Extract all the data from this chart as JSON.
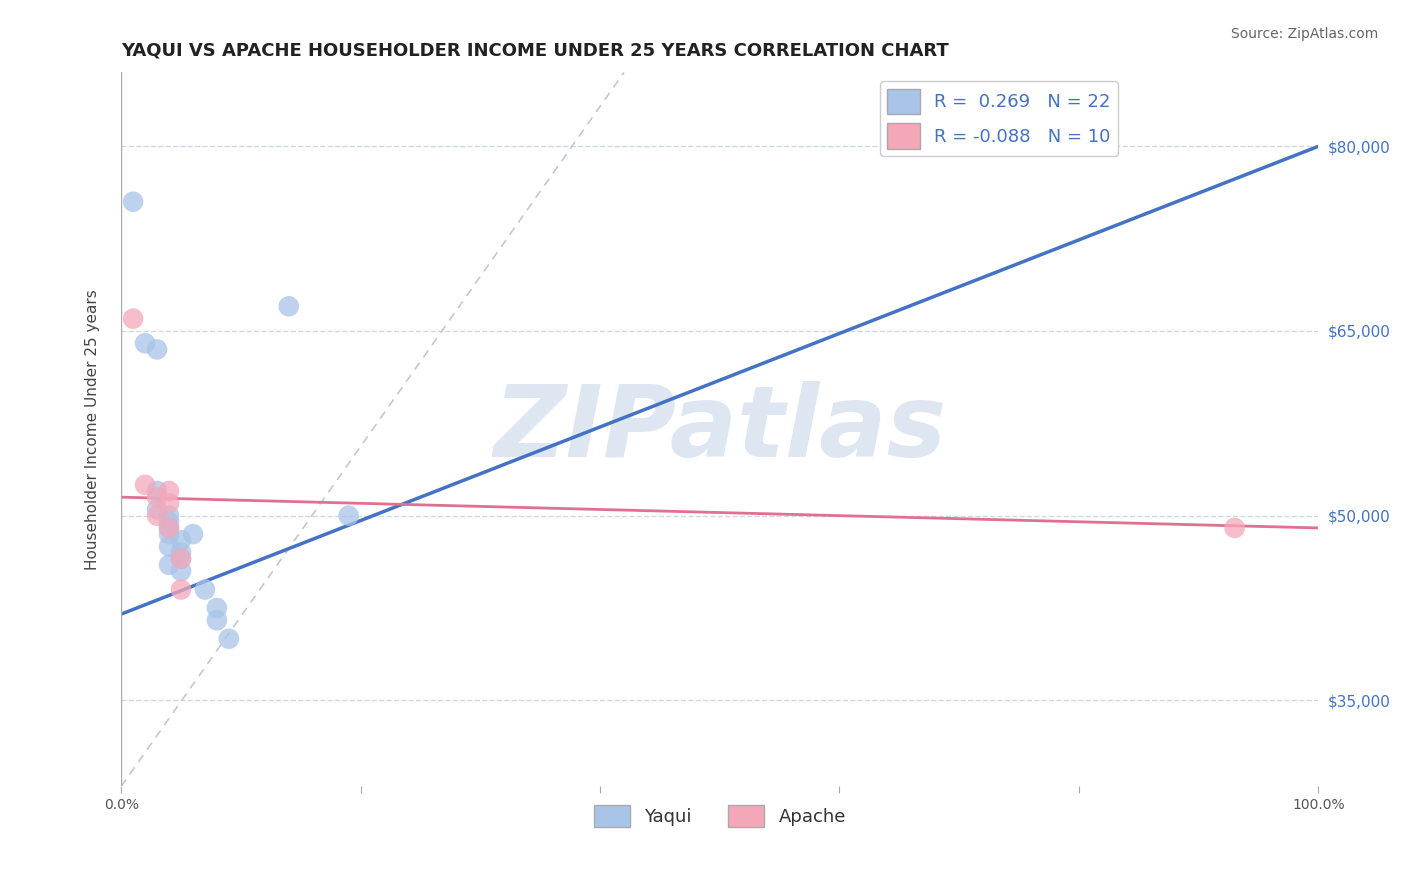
{
  "title": "YAQUI VS APACHE HOUSEHOLDER INCOME UNDER 25 YEARS CORRELATION CHART",
  "source_text": "Source: ZipAtlas.com",
  "ylabel": "Householder Income Under 25 years",
  "xlim": [
    0.0,
    1.0
  ],
  "ylim": [
    28000,
    86000
  ],
  "xticks": [
    0.0,
    0.2,
    0.4,
    0.6,
    0.8,
    1.0
  ],
  "xticklabels": [
    "0.0%",
    "",
    "",
    "",
    "",
    "100.0%"
  ],
  "ytick_positions": [
    35000,
    50000,
    65000,
    80000
  ],
  "ytick_labels": [
    "$35,000",
    "$50,000",
    "$65,000",
    "$80,000"
  ],
  "yaqui_R": 0.269,
  "yaqui_N": 22,
  "apache_R": -0.088,
  "apache_N": 10,
  "yaqui_color": "#a8c4e8",
  "apache_color": "#f4a7b9",
  "yaqui_line_color": "#4472c4",
  "apache_line_color": "#e07090",
  "ref_line_color": "#c0c8d8",
  "watermark_text": "ZIPatlas",
  "watermark_color": "#c8d8e8",
  "background_color": "#ffffff",
  "grid_color": "#d0d8e8",
  "yaqui_x": [
    0.01,
    0.02,
    0.03,
    0.03,
    0.03,
    0.04,
    0.04,
    0.04,
    0.04,
    0.04,
    0.04,
    0.05,
    0.05,
    0.05,
    0.05,
    0.06,
    0.07,
    0.08,
    0.08,
    0.09,
    0.14,
    0.19
  ],
  "yaqui_y": [
    75500,
    64000,
    63500,
    52000,
    50500,
    50000,
    49500,
    49000,
    48500,
    47500,
    46000,
    48000,
    47000,
    46500,
    45500,
    48500,
    44000,
    42500,
    41500,
    40000,
    67000,
    50000
  ],
  "apache_x": [
    0.01,
    0.02,
    0.03,
    0.03,
    0.04,
    0.04,
    0.04,
    0.05,
    0.05,
    0.93
  ],
  "apache_y": [
    66000,
    52500,
    51500,
    50000,
    52000,
    51000,
    49000,
    46500,
    44000,
    49000
  ],
  "yaqui_line_x": [
    0.0,
    1.0
  ],
  "yaqui_line_y": [
    42000,
    80000
  ],
  "apache_line_x": [
    0.0,
    1.0
  ],
  "apache_line_y": [
    51500,
    49000
  ],
  "ref_line_x": [
    0.0,
    0.42
  ],
  "ref_line_y": [
    28000,
    86000
  ],
  "title_fontsize": 13,
  "axis_label_fontsize": 11,
  "tick_fontsize": 10,
  "legend_fontsize": 13,
  "source_fontsize": 10
}
